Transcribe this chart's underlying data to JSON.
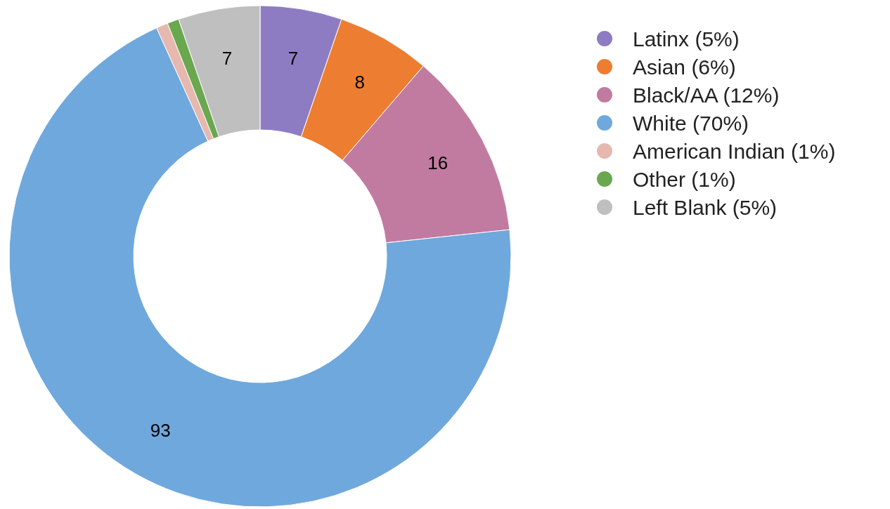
{
  "chart_data": {
    "type": "donut",
    "categories": [
      "Latinx (5%)",
      "Asian (6%)",
      "Black/AA (12%)",
      "White (70%)",
      "American Indian (1%)",
      "Other (1%)",
      "Left Blank (5%)"
    ],
    "values": [
      7,
      8,
      16,
      93,
      1,
      1,
      7
    ],
    "colors": [
      "#8e7cc3",
      "#ed7d31",
      "#c27ba0",
      "#6fa8dc",
      "#e6b8af",
      "#6aa84f",
      "#bfbfbf"
    ],
    "value_labels": [
      "7",
      "8",
      "16",
      "93",
      null,
      null,
      "7"
    ],
    "legend": "right"
  }
}
